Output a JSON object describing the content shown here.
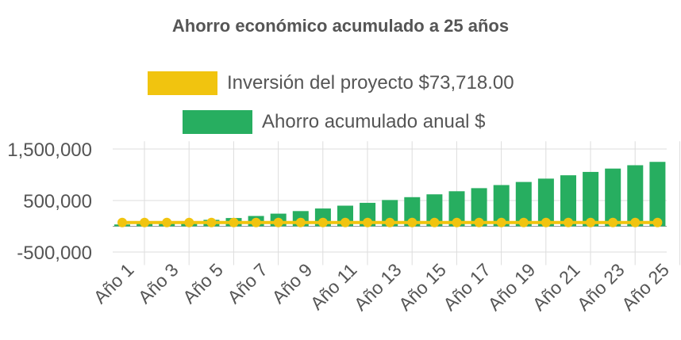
{
  "chart_data": {
    "type": "bar",
    "title": "Ahorro económico acumulado a 25 años",
    "categories": [
      "Año 1",
      "Año 2",
      "Año 3",
      "Año 4",
      "Año 5",
      "Año 6",
      "Año 7",
      "Año 8",
      "Año 9",
      "Año 10",
      "Año 11",
      "Año 12",
      "Año 13",
      "Año 14",
      "Año 15",
      "Año 16",
      "Año 17",
      "Año 18",
      "Año 19",
      "Año 20",
      "Año 21",
      "Año 22",
      "Año 23",
      "Año 24",
      "Año 25"
    ],
    "tick_labels": [
      "Año 1",
      "Año 3",
      "Año 5",
      "Año 7",
      "Año 9",
      "Año 11",
      "Año 13",
      "Año 15",
      "Año 17",
      "Año 19",
      "Año 21",
      "Año 23",
      "Año 25"
    ],
    "y_ticks": [
      {
        "value": 1500000,
        "label": "1,500,000"
      },
      {
        "value": 500000,
        "label": "500,000"
      },
      {
        "value": -500000,
        "label": "-500,000"
      }
    ],
    "ylim": [
      -600000,
      1650000
    ],
    "grid": true,
    "legend_position": "top",
    "series": [
      {
        "name": "Inversión del proyecto $73,718.00",
        "type": "line",
        "color": "#F1C40F",
        "values": [
          73718,
          73718,
          73718,
          73718,
          73718,
          73718,
          73718,
          73718,
          73718,
          73718,
          73718,
          73718,
          73718,
          73718,
          73718,
          73718,
          73718,
          73718,
          73718,
          73718,
          73718,
          73718,
          73718,
          73718,
          73718
        ]
      },
      {
        "name": "Ahorro acumulado anual $",
        "type": "bar",
        "color": "#27AE60",
        "values": [
          35000,
          50000,
          70000,
          95000,
          125000,
          160000,
          200000,
          245000,
          295000,
          345000,
          400000,
          455000,
          510000,
          565000,
          620000,
          680000,
          740000,
          800000,
          860000,
          925000,
          990000,
          1055000,
          1120000,
          1185000,
          1250000
        ]
      }
    ]
  }
}
